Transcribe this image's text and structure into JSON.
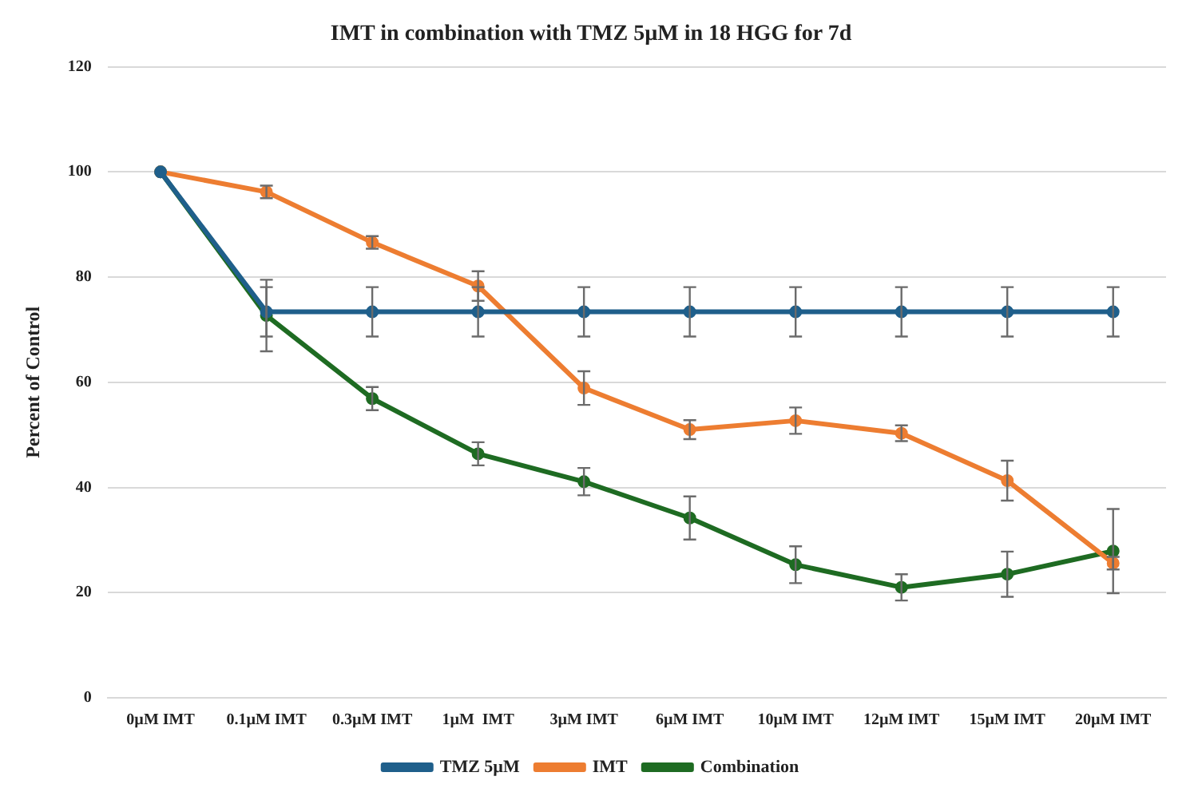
{
  "chart_data": {
    "type": "line",
    "title": "IMT in combination with TMZ 5µM in 18 HGG for 7d",
    "ylabel": "Percent of Control",
    "categories": [
      "0µM IMT",
      "0.1µM IMT",
      "0.3µM IMT",
      "1µM  IMT",
      "3µM IMT",
      "6µM IMT",
      "10µM IMT",
      "12µM IMT",
      "15µM IMT",
      "20µM IMT"
    ],
    "series": [
      {
        "name": "TMZ 5µM",
        "color": "#1f5f8b",
        "values": [
          100,
          73.4,
          73.4,
          73.4,
          73.4,
          73.4,
          73.4,
          73.4,
          73.4,
          73.4
        ],
        "errors": [
          null,
          4.7,
          4.7,
          4.7,
          4.7,
          4.7,
          4.7,
          4.7,
          4.7,
          4.7
        ]
      },
      {
        "name": "IMT",
        "color": "#ed7d31",
        "values": [
          100,
          96.2,
          86.6,
          78.3,
          58.9,
          51,
          52.7,
          50.3,
          41.3,
          25.6
        ],
        "errors": [
          null,
          1.2,
          1.2,
          2.8,
          3.2,
          1.8,
          2.5,
          1.5,
          3.8,
          1.2
        ]
      },
      {
        "name": "Combination",
        "color": "#1e6b22",
        "values": [
          100,
          72.7,
          56.9,
          46.4,
          41.1,
          34.2,
          25.3,
          21,
          23.5,
          27.9
        ],
        "errors": [
          null,
          6.8,
          2.2,
          2.2,
          2.6,
          4.1,
          3.5,
          2.5,
          4.3,
          8
        ]
      }
    ],
    "ylim": [
      0,
      120
    ],
    "yticks": [
      0,
      20,
      40,
      60,
      80,
      100,
      120
    ],
    "grid": "y",
    "legend": "bottom",
    "marker": "circle",
    "line_style": "solid"
  }
}
